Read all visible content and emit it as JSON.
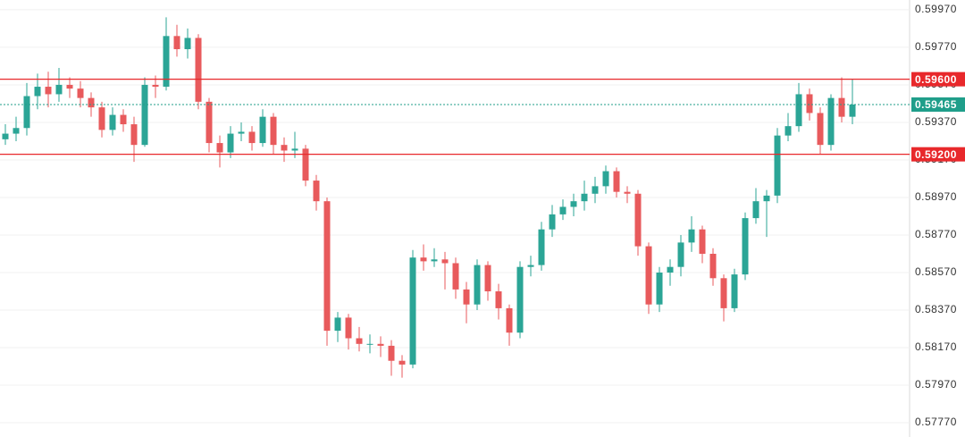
{
  "chart_data": {
    "type": "candlestick",
    "open": [
      0.5928,
      0.5931,
      0.5934,
      0.5951,
      0.5956,
      0.5952,
      0.5957,
      0.5955,
      0.595,
      0.5945,
      0.5933,
      0.5941,
      0.5936,
      0.5925,
      0.5957,
      0.5956,
      0.5983,
      0.5976,
      0.5982,
      0.5948,
      0.5926,
      0.5921,
      0.5931,
      0.5932,
      0.5926,
      0.594,
      0.5925,
      0.5922,
      0.5923,
      0.5906,
      0.5895,
      0.5826,
      0.5833,
      0.5822,
      0.5819,
      0.5819,
      0.5818,
      0.581,
      0.5808,
      0.5865,
      0.5863,
      0.5864,
      0.5862,
      0.5848,
      0.584,
      0.5861,
      0.5847,
      0.5838,
      0.5825,
      0.586,
      0.5861,
      0.588,
      0.5888,
      0.5892,
      0.5895,
      0.5899,
      0.5903,
      0.5911,
      0.59,
      0.5899,
      0.5871,
      0.584,
      0.5857,
      0.586,
      0.5873,
      0.588,
      0.5867,
      0.5854,
      0.5838,
      0.5856,
      0.5886,
      0.5895,
      0.5898,
      0.593,
      0.5935,
      0.5952,
      0.5942,
      0.5925,
      0.595,
      0.594
    ],
    "high": [
      0.5936,
      0.594,
      0.5958,
      0.5963,
      0.5964,
      0.5966,
      0.5961,
      0.5959,
      0.5953,
      0.5948,
      0.5945,
      0.5944,
      0.594,
      0.5961,
      0.5962,
      0.5993,
      0.5989,
      0.5987,
      0.5984,
      0.595,
      0.593,
      0.5935,
      0.5937,
      0.5935,
      0.5944,
      0.5942,
      0.5929,
      0.5932,
      0.5925,
      0.5909,
      0.5897,
      0.5836,
      0.5835,
      0.5828,
      0.5824,
      0.5823,
      0.5821,
      0.5813,
      0.5869,
      0.5872,
      0.587,
      0.5868,
      0.5865,
      0.5852,
      0.5864,
      0.5863,
      0.5851,
      0.584,
      0.5863,
      0.5866,
      0.5884,
      0.5893,
      0.5896,
      0.5899,
      0.5906,
      0.5908,
      0.5914,
      0.5913,
      0.5903,
      0.5901,
      0.5873,
      0.586,
      0.5864,
      0.5877,
      0.5887,
      0.5882,
      0.587,
      0.5856,
      0.5859,
      0.5889,
      0.5902,
      0.5901,
      0.5934,
      0.5942,
      0.5958,
      0.5955,
      0.5945,
      0.5952,
      0.5961,
      0.596
    ],
    "low": [
      0.5925,
      0.5927,
      0.593,
      0.5944,
      0.5945,
      0.5948,
      0.595,
      0.5945,
      0.594,
      0.5929,
      0.593,
      0.5932,
      0.5916,
      0.5924,
      0.595,
      0.5954,
      0.5972,
      0.5971,
      0.5944,
      0.5921,
      0.5913,
      0.5918,
      0.5927,
      0.5922,
      0.5924,
      0.592,
      0.5916,
      0.5918,
      0.5903,
      0.589,
      0.5818,
      0.582,
      0.5816,
      0.5815,
      0.5814,
      0.5812,
      0.5802,
      0.5801,
      0.5806,
      0.5858,
      0.586,
      0.5848,
      0.5843,
      0.583,
      0.5837,
      0.5842,
      0.5832,
      0.5818,
      0.5822,
      0.5855,
      0.5858,
      0.5876,
      0.5885,
      0.5887,
      0.589,
      0.5894,
      0.5899,
      0.5897,
      0.5894,
      0.5866,
      0.5835,
      0.5836,
      0.585,
      0.5855,
      0.5868,
      0.5862,
      0.585,
      0.5831,
      0.5836,
      0.5853,
      0.5883,
      0.5876,
      0.5894,
      0.5927,
      0.5932,
      0.5938,
      0.592,
      0.5922,
      0.5937,
      0.5936
    ],
    "close": [
      0.5931,
      0.5934,
      0.5951,
      0.5956,
      0.5952,
      0.5957,
      0.5955,
      0.595,
      0.5945,
      0.5933,
      0.5941,
      0.5936,
      0.5925,
      0.5957,
      0.5956,
      0.5983,
      0.5976,
      0.5982,
      0.5948,
      0.5926,
      0.5921,
      0.5931,
      0.5932,
      0.5926,
      0.594,
      0.5925,
      0.5922,
      0.5923,
      0.5906,
      0.5895,
      0.5826,
      0.5833,
      0.5822,
      0.5819,
      0.5819,
      0.5818,
      0.581,
      0.5808,
      0.5865,
      0.5863,
      0.5864,
      0.5862,
      0.5848,
      0.584,
      0.5861,
      0.5847,
      0.5838,
      0.5825,
      0.586,
      0.5861,
      0.588,
      0.5888,
      0.5892,
      0.5895,
      0.5899,
      0.5903,
      0.5911,
      0.59,
      0.5899,
      0.5871,
      0.584,
      0.5857,
      0.586,
      0.5873,
      0.588,
      0.5867,
      0.5854,
      0.5838,
      0.5856,
      0.5886,
      0.5895,
      0.5898,
      0.593,
      0.5935,
      0.5952,
      0.5942,
      0.5925,
      0.595,
      0.594,
      0.59465
    ],
    "up_color": "#2ba596",
    "down_color": "#e85a5c",
    "ylim": [
      0.57694,
      0.60022
    ],
    "yticks": [
      {
        "value": 0.5997,
        "label": "0.59970"
      },
      {
        "value": 0.5977,
        "label": "0.59770"
      },
      {
        "value": 0.5957,
        "label": "0.59570"
      },
      {
        "value": 0.5937,
        "label": "0.59370"
      },
      {
        "value": 0.5917,
        "label": "0.59170"
      },
      {
        "value": 0.5897,
        "label": "0.58970"
      },
      {
        "value": 0.5877,
        "label": "0.58770"
      },
      {
        "value": 0.5857,
        "label": "0.58570"
      },
      {
        "value": 0.5837,
        "label": "0.58370"
      },
      {
        "value": 0.5817,
        "label": "0.58170"
      },
      {
        "value": 0.5797,
        "label": "0.57970"
      },
      {
        "value": 0.5777,
        "label": "0.57770"
      }
    ],
    "grid": true,
    "levels": [
      {
        "value": 0.596,
        "label": "0.59600",
        "color": "#e8282b"
      },
      {
        "value": 0.592,
        "label": "0.59200",
        "color": "#e8282b"
      }
    ],
    "last_price": {
      "value": 0.59465,
      "label": "0.59465",
      "color": "#1f9e8a"
    }
  }
}
